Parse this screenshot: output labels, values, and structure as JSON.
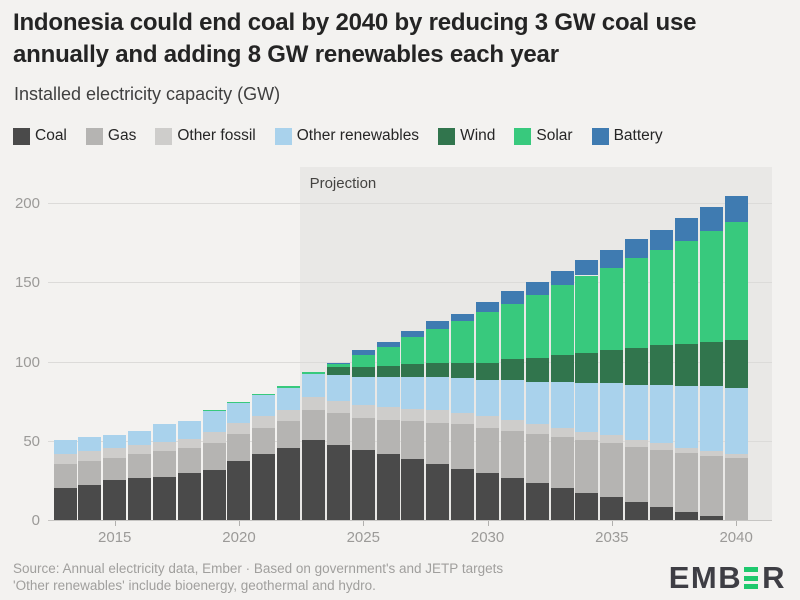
{
  "header": {
    "title": "Indonesia could end coal by 2040 by reducing 3 GW coal use annually and adding 8 GW renewables each year",
    "title_line1": "Indonesia could end coal by 2040 by reducing 3 GW coal use",
    "title_line2": "annually and adding 8 GW renewables each year",
    "subtitle": "Installed electricity capacity (GW)"
  },
  "chart_data": {
    "type": "bar",
    "stacked": true,
    "title": "Indonesia could end coal by 2040 by reducing 3 GW coal use annually and adding 8 GW renewables each year",
    "subtitle": "Installed electricity capacity (GW)",
    "unit": "GW",
    "x": [
      2013,
      2014,
      2015,
      2016,
      2017,
      2018,
      2019,
      2020,
      2021,
      2022,
      2023,
      2024,
      2025,
      2026,
      2027,
      2028,
      2029,
      2030,
      2031,
      2032,
      2033,
      2034,
      2035,
      2036,
      2037,
      2038,
      2039,
      2040
    ],
    "series": [
      {
        "name": "Coal",
        "color": "#4a4a4a",
        "values": [
          21,
          23,
          26,
          27,
          28,
          30,
          32,
          38,
          42,
          46,
          51,
          48,
          45,
          42,
          39,
          36,
          33,
          30,
          27,
          24,
          21,
          18,
          15,
          12,
          9,
          6,
          3,
          0
        ]
      },
      {
        "name": "Gas",
        "color": "#b5b4b2",
        "values": [
          15,
          15,
          14,
          15,
          16,
          16,
          17,
          17,
          17,
          17,
          19,
          20,
          20,
          22,
          24,
          26,
          28,
          29,
          30,
          31,
          32,
          33,
          34,
          35,
          36,
          37,
          38,
          40
        ]
      },
      {
        "name": "Other fossil",
        "color": "#cecdcb",
        "values": [
          6,
          6,
          6,
          6,
          6,
          6,
          7,
          7,
          7,
          7,
          8,
          8,
          8,
          8,
          8,
          8,
          7,
          7,
          7,
          6,
          6,
          5,
          5,
          4,
          4,
          3,
          3,
          2
        ]
      },
      {
        "name": "Other renewables",
        "color": "#a9d2ec",
        "values": [
          9,
          9,
          8,
          9,
          11,
          11,
          13.5,
          12.5,
          13.5,
          14,
          15,
          16,
          18,
          19,
          20,
          21,
          22,
          23,
          25,
          27,
          29,
          31,
          33,
          35,
          37,
          39,
          41,
          42
        ]
      },
      {
        "name": "Wind",
        "color": "#31754d",
        "values": [
          0,
          0,
          0,
          0,
          0,
          0,
          0,
          0,
          0,
          0,
          0,
          5,
          6,
          7,
          8,
          9,
          10,
          11,
          13,
          15,
          17,
          19,
          21,
          23,
          25,
          27,
          28,
          30
        ]
      },
      {
        "name": "Solar",
        "color": "#38c97d",
        "values": [
          0,
          0,
          0,
          0,
          0,
          0,
          0.5,
          0.5,
          0.5,
          1,
          1,
          2,
          8,
          12,
          17,
          21,
          26,
          32,
          35,
          40,
          44,
          49,
          52,
          57,
          60,
          65,
          70,
          75
        ]
      },
      {
        "name": "Battery",
        "color": "#3f7bb1",
        "values": [
          0,
          0,
          0,
          0,
          0,
          0,
          0,
          0,
          0,
          0,
          0,
          1,
          3,
          3,
          4,
          5,
          5,
          6,
          8,
          8,
          9,
          10,
          11,
          12,
          13,
          14,
          15,
          16
        ]
      }
    ],
    "ylim": [
      0,
      220
    ],
    "yticks": [
      0,
      50,
      100,
      150,
      200
    ],
    "xticks": [
      2015,
      2020,
      2025,
      2030,
      2035,
      2040
    ],
    "grid": "horizontal",
    "legend_position": "top",
    "projection": {
      "label": "Projection",
      "start_year": 2023
    }
  },
  "footer": {
    "source_line1": "Source: Annual electricity data, Ember · Based on government's and JETP targets",
    "source_line2": "'Other renewables' include bioenergy, geothermal and hydro.",
    "logo": {
      "text_before": "EMB",
      "text_after": "R",
      "green": "#1ec96e",
      "alt": "EMBER"
    }
  }
}
